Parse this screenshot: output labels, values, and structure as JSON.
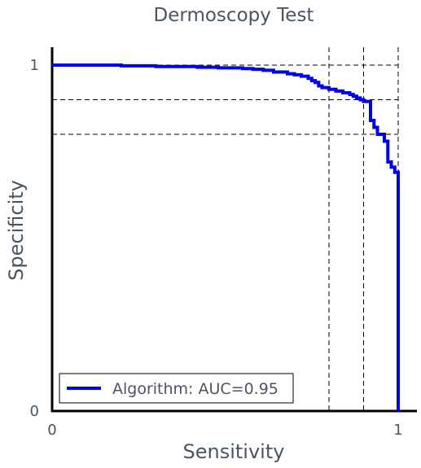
{
  "chart_data": {
    "type": "line",
    "title": "Dermoscopy Test",
    "xlabel": "Sensitivity",
    "ylabel": "Specificity",
    "xlim": [
      0,
      1
    ],
    "ylim": [
      0,
      1
    ],
    "x_ticks": [
      {
        "value": 0,
        "label": "0"
      },
      {
        "value": 1,
        "label": "1"
      }
    ],
    "y_ticks": [
      {
        "value": 0,
        "label": "0"
      },
      {
        "value": 1,
        "label": "1"
      }
    ],
    "grid": false,
    "legend": {
      "placement": "bottom-left"
    },
    "reference_lines": {
      "vertical": [
        0.8,
        0.9,
        1.0
      ],
      "horizontal": [
        0.8,
        0.9,
        1.0
      ]
    },
    "series": [
      {
        "name": "Algorithm: AUC=0.95",
        "color": "#0000e6",
        "points": [
          [
            0.0,
            1.0
          ],
          [
            0.2,
            1.0
          ],
          [
            0.2,
            0.998
          ],
          [
            0.3,
            0.998
          ],
          [
            0.3,
            0.996
          ],
          [
            0.42,
            0.996
          ],
          [
            0.42,
            0.994
          ],
          [
            0.48,
            0.994
          ],
          [
            0.48,
            0.992
          ],
          [
            0.55,
            0.992
          ],
          [
            0.55,
            0.99
          ],
          [
            0.58,
            0.99
          ],
          [
            0.58,
            0.988
          ],
          [
            0.61,
            0.988
          ],
          [
            0.61,
            0.985
          ],
          [
            0.64,
            0.985
          ],
          [
            0.64,
            0.98
          ],
          [
            0.68,
            0.98
          ],
          [
            0.68,
            0.975
          ],
          [
            0.7,
            0.975
          ],
          [
            0.7,
            0.972
          ],
          [
            0.72,
            0.972
          ],
          [
            0.72,
            0.968
          ],
          [
            0.74,
            0.968
          ],
          [
            0.74,
            0.962
          ],
          [
            0.75,
            0.962
          ],
          [
            0.75,
            0.955
          ],
          [
            0.76,
            0.955
          ],
          [
            0.76,
            0.95
          ],
          [
            0.77,
            0.95
          ],
          [
            0.77,
            0.94
          ],
          [
            0.78,
            0.94
          ],
          [
            0.78,
            0.935
          ],
          [
            0.8,
            0.935
          ],
          [
            0.8,
            0.93
          ],
          [
            0.82,
            0.93
          ],
          [
            0.82,
            0.925
          ],
          [
            0.84,
            0.925
          ],
          [
            0.84,
            0.92
          ],
          [
            0.86,
            0.92
          ],
          [
            0.86,
            0.915
          ],
          [
            0.87,
            0.915
          ],
          [
            0.87,
            0.91
          ],
          [
            0.88,
            0.91
          ],
          [
            0.88,
            0.905
          ],
          [
            0.89,
            0.905
          ],
          [
            0.89,
            0.9
          ],
          [
            0.9,
            0.9
          ],
          [
            0.9,
            0.895
          ],
          [
            0.92,
            0.895
          ],
          [
            0.92,
            0.84
          ],
          [
            0.93,
            0.84
          ],
          [
            0.93,
            0.82
          ],
          [
            0.94,
            0.82
          ],
          [
            0.94,
            0.8
          ],
          [
            0.96,
            0.8
          ],
          [
            0.96,
            0.78
          ],
          [
            0.97,
            0.78
          ],
          [
            0.97,
            0.72
          ],
          [
            0.98,
            0.72
          ],
          [
            0.98,
            0.705
          ],
          [
            0.99,
            0.705
          ],
          [
            0.99,
            0.69
          ],
          [
            1.0,
            0.69
          ],
          [
            1.0,
            0.0
          ]
        ]
      }
    ]
  }
}
